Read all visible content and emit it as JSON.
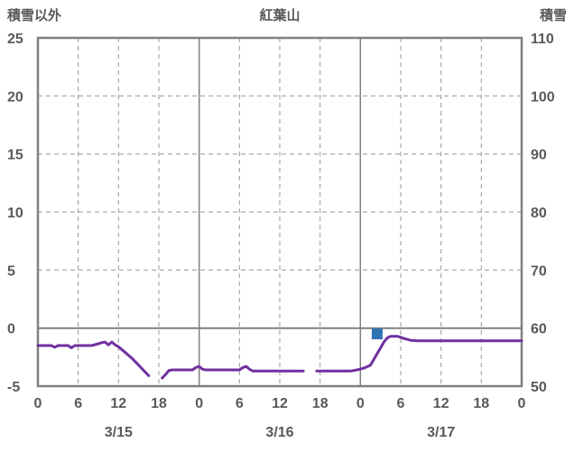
{
  "colors": {
    "text": "#595959",
    "grid": "#969696",
    "axis": "#808080",
    "line": "#7030a0",
    "marker": "#2e75b6",
    "background": "#ffffff"
  },
  "chart_data": {
    "type": "line",
    "title": "紅葉山",
    "left_axis": {
      "label": "積雪以外",
      "min": -5,
      "max": 25,
      "ticks": [
        25,
        20,
        15,
        10,
        5,
        0,
        -5
      ]
    },
    "right_axis": {
      "label": "積雪",
      "min": 50,
      "max": 110,
      "ticks": [
        110,
        100,
        90,
        80,
        70,
        60,
        50
      ]
    },
    "x_axis": {
      "min_hour": 0,
      "max_hour": 72,
      "hour_ticks": [
        0,
        6,
        12,
        18,
        24,
        30,
        36,
        42,
        48,
        54,
        60,
        66,
        72
      ],
      "hour_tick_labels": [
        "0",
        "6",
        "12",
        "18",
        "0",
        "6",
        "12",
        "18",
        "0",
        "6",
        "12",
        "18",
        "0"
      ],
      "dashed_hours": [
        6,
        12,
        18,
        30,
        36,
        42,
        54,
        60,
        66
      ],
      "solid_hours": [
        24,
        48
      ],
      "day_labels": [
        {
          "label": "3/15",
          "center_hour": 12
        },
        {
          "label": "3/16",
          "center_hour": 36
        },
        {
          "label": "3/17",
          "center_hour": 60
        }
      ]
    },
    "grid": {
      "dashed_left_values": [
        20,
        15,
        10,
        5
      ],
      "zero_value": 0
    },
    "series": [
      {
        "name": "purple-temperature-line",
        "axis": "left",
        "color": "#7030a0",
        "segments": [
          [
            [
              0,
              -1.5
            ],
            [
              2,
              -1.5
            ],
            [
              2.5,
              -1.65
            ],
            [
              3,
              -1.5
            ],
            [
              4.5,
              -1.5
            ],
            [
              5,
              -1.7
            ],
            [
              5.5,
              -1.5
            ],
            [
              8,
              -1.5
            ],
            [
              9,
              -1.35
            ],
            [
              9.5,
              -1.25
            ],
            [
              10,
              -1.2
            ],
            [
              10.5,
              -1.45
            ],
            [
              11,
              -1.2
            ],
            [
              11.5,
              -1.45
            ],
            [
              12,
              -1.6
            ],
            [
              13,
              -2.1
            ],
            [
              14,
              -2.6
            ],
            [
              15,
              -3.2
            ],
            [
              16,
              -3.8
            ],
            [
              16.5,
              -4.1
            ]
          ],
          [
            [
              18.5,
              -4.3
            ],
            [
              19,
              -4.0
            ],
            [
              19.5,
              -3.65
            ],
            [
              20,
              -3.6
            ],
            [
              23,
              -3.6
            ],
            [
              23.5,
              -3.4
            ],
            [
              24,
              -3.3
            ],
            [
              24.5,
              -3.55
            ],
            [
              25,
              -3.6
            ],
            [
              30,
              -3.6
            ],
            [
              30.5,
              -3.4
            ],
            [
              31,
              -3.3
            ],
            [
              31.5,
              -3.55
            ],
            [
              32,
              -3.7
            ],
            [
              39.5,
              -3.7
            ]
          ],
          [
            [
              41.5,
              -3.7
            ],
            [
              46.5,
              -3.7
            ],
            [
              47.5,
              -3.6
            ],
            [
              48.5,
              -3.45
            ],
            [
              49.5,
              -3.2
            ],
            [
              50,
              -2.7
            ],
            [
              51,
              -1.7
            ],
            [
              51.5,
              -1.2
            ],
            [
              52,
              -0.85
            ],
            [
              52.5,
              -0.7
            ],
            [
              53.5,
              -0.7
            ],
            [
              54.5,
              -0.9
            ],
            [
              55.5,
              -1.05
            ],
            [
              56.5,
              -1.1
            ],
            [
              72,
              -1.1
            ]
          ]
        ]
      }
    ],
    "markers": [
      {
        "name": "snow-depth-marker",
        "shape": "square",
        "color": "#2e75b6",
        "hour": 50.5,
        "left_value": -0.5,
        "right_value": 59
      }
    ]
  }
}
